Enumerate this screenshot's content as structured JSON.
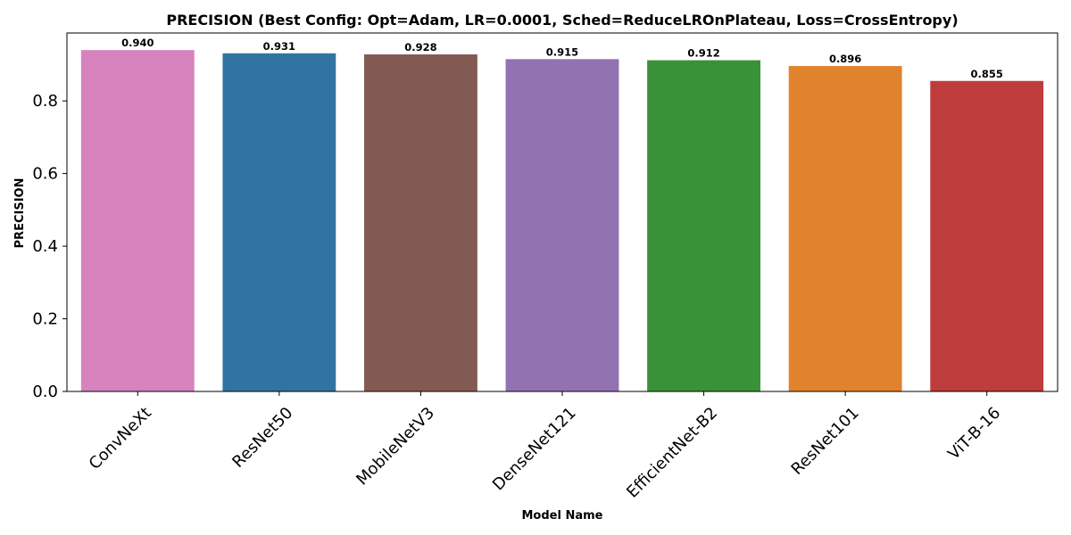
{
  "chart_data": {
    "type": "bar",
    "title": "PRECISION (Best Config: Opt=Adam, LR=0.0001, Sched=ReduceLROnPlateau, Loss=CrossEntropy)",
    "xlabel": "Model Name",
    "ylabel": "PRECISION",
    "categories": [
      "ConvNeXt",
      "ResNet50",
      "MobileNetV3",
      "DenseNet121",
      "EfficientNet-B2",
      "ResNet101",
      "ViT-B-16"
    ],
    "values": [
      0.94,
      0.931,
      0.928,
      0.915,
      0.912,
      0.896,
      0.855
    ],
    "value_labels": [
      "0.940",
      "0.931",
      "0.928",
      "0.915",
      "0.912",
      "0.896",
      "0.855"
    ],
    "colors": [
      "#d683be",
      "#3274a1",
      "#835a52",
      "#9372b1",
      "#3a9238",
      "#e1822c",
      "#bf3c3d"
    ],
    "ylim": [
      0,
      0.987
    ],
    "yticks": [
      0.0,
      0.2,
      0.4,
      0.6,
      0.8
    ],
    "ytick_labels": [
      "0.0",
      "0.2",
      "0.4",
      "0.6",
      "0.8"
    ],
    "grid": false,
    "legend": false
  }
}
